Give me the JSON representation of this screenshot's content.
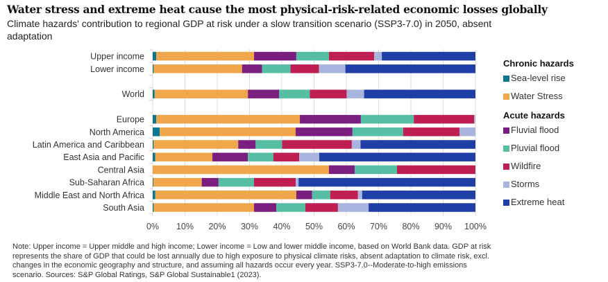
{
  "chart_data": {
    "type": "bar",
    "orientation": "horizontal",
    "stacked": true,
    "title": "Water stress and extreme heat cause the most physical-risk-related economic losses globally",
    "subtitle": "Climate hazards' contribution to regional GDP at risk under a slow transition scenario (SSP3-7.0) in 2050, absent adaptation",
    "xlabel": "",
    "ylabel": "",
    "xlim": [
      0,
      100
    ],
    "x_ticks": [
      "0%",
      "10%",
      "20%",
      "30%",
      "40%",
      "50%",
      "60%",
      "70%",
      "80%",
      "90%",
      "100%"
    ],
    "grid": true,
    "legend_position": "right",
    "categories": [
      "Upper income",
      "Lower income",
      "",
      "World",
      "",
      "Europe",
      "North America",
      "Latin America and Caribbean",
      "East Asia and Pacific",
      "Central Asia",
      "Sub-Saharan Africa",
      "Middle East and North Africa",
      "South Asia"
    ],
    "series": [
      {
        "name": "Sea-level rise",
        "group": "Chronic hazards",
        "color": "#0a7690",
        "values": [
          1.1,
          0.3,
          null,
          0.6,
          null,
          1.1,
          2.2,
          0.3,
          0.8,
          0.0,
          0.2,
          0.8,
          0.3
        ]
      },
      {
        "name": "Water Stress",
        "group": "Chronic hazards",
        "color": "#f0a64b",
        "values": [
          30.3,
          27.4,
          null,
          28.9,
          null,
          44.5,
          42.1,
          26.2,
          17.7,
          54.6,
          15.0,
          43.7,
          31.1
        ]
      },
      {
        "name": "Fluvial flood",
        "group": "Acute hazards",
        "color": "#7a1f7f",
        "values": [
          13.1,
          6.2,
          null,
          9.7,
          null,
          18.9,
          17.6,
          5.4,
          11.0,
          8.0,
          5.2,
          4.9,
          6.9
        ]
      },
      {
        "name": "Pluvial flood",
        "group": "Acute hazards",
        "color": "#55bea3",
        "values": [
          10.1,
          8.8,
          null,
          9.5,
          null,
          16.4,
          15.7,
          8.2,
          7.9,
          13.1,
          11.0,
          5.6,
          9.0
        ]
      },
      {
        "name": "Wildfire",
        "group": "Acute hazards",
        "color": "#be1f50",
        "values": [
          14.0,
          8.8,
          null,
          11.4,
          null,
          18.7,
          17.5,
          21.6,
          8.0,
          24.3,
          12.9,
          8.6,
          10.1
        ]
      },
      {
        "name": "Storms",
        "group": "Acute hazards",
        "color": "#a9b5de",
        "values": [
          2.4,
          8.2,
          null,
          5.4,
          null,
          0.4,
          4.9,
          2.7,
          6.2,
          0.0,
          0.9,
          1.3,
          9.5
        ]
      },
      {
        "name": "Extreme heat",
        "group": "Acute hazards",
        "color": "#1f3fa7",
        "values": [
          29.0,
          40.3,
          null,
          34.5,
          null,
          0.0,
          0.0,
          35.6,
          48.4,
          0.0,
          54.8,
          35.1,
          33.1
        ]
      }
    ]
  },
  "legend": {
    "groups": [
      {
        "title": "Chronic hazards",
        "items": [
          {
            "label": "Sea-level rise",
            "color": "#0a7690"
          },
          {
            "label": "Water Stress",
            "color": "#f0a64b"
          }
        ]
      },
      {
        "title": "Acute hazards",
        "items": [
          {
            "label": "Fluvial flood",
            "color": "#7a1f7f"
          },
          {
            "label": "Pluvial flood",
            "color": "#55bea3"
          },
          {
            "label": "Wildfire",
            "color": "#be1f50"
          },
          {
            "label": "Storms",
            "color": "#a9b5de"
          },
          {
            "label": "Extreme heat",
            "color": "#1f3fa7"
          }
        ]
      }
    ]
  },
  "note": "Note: Upper income = Upper middle and high income; Lower income = Low and lower middle income, based on World Bank data. GDP at risk represents the share of GDP that could be lost annually due to high exposure to physical climate risks, absent adaptation to climate risk, excl. changes in the economic geography and structure, and assuming all hazards occur every year. SSP3-7.0--Moderate-to-high emissions scenario. Sources: S&P Global Ratings, S&P Global Sustainable1 (2023)."
}
